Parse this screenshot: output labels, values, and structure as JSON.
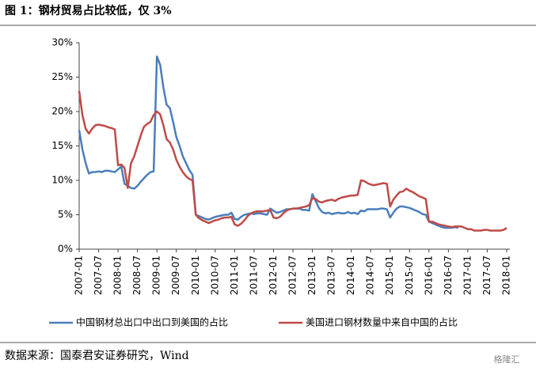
{
  "chart_data": {
    "type": "line",
    "title": "图 1：钢材贸易占比较低，仅 3%",
    "source": "数据来源：国泰君安证券研究，Wind",
    "watermark": "格隆汇",
    "categories": [
      "2007-01",
      null,
      null,
      null,
      null,
      null,
      "2007-07",
      null,
      null,
      null,
      null,
      null,
      "2008-01",
      null,
      null,
      null,
      null,
      null,
      "2008-07",
      null,
      null,
      null,
      null,
      null,
      "2009-01",
      null,
      null,
      null,
      null,
      null,
      "2009-07",
      null,
      null,
      null,
      null,
      null,
      "2010-01",
      null,
      null,
      null,
      null,
      null,
      "2010-07",
      null,
      null,
      null,
      null,
      null,
      "2011-01",
      null,
      null,
      null,
      null,
      null,
      "2011-07",
      null,
      null,
      null,
      null,
      null,
      "2012-01",
      null,
      null,
      null,
      null,
      null,
      "2012-07",
      null,
      null,
      null,
      null,
      null,
      "2013-01",
      null,
      null,
      null,
      null,
      null,
      "2013-07",
      null,
      null,
      null,
      null,
      null,
      "2014-01",
      null,
      null,
      null,
      null,
      null,
      "2014-07",
      null,
      null,
      null,
      null,
      null,
      "2015-01",
      null,
      null,
      null,
      null,
      null,
      "2015-07",
      null,
      null,
      null,
      null,
      null,
      "2016-01",
      null,
      null,
      null,
      null,
      null,
      "2016-07",
      null,
      null,
      null,
      null,
      null,
      "2017-01",
      null,
      null,
      null,
      null,
      null,
      "2017-07",
      null,
      null,
      null,
      null,
      null,
      "2018-01"
    ],
    "series": [
      {
        "name": "中国钢材总出口中出口到美国的占比",
        "color": "#4a7ebb",
        "values": [
          17.3,
          14.5,
          12.5,
          11,
          11.2,
          11.2,
          11.3,
          11.2,
          11.4,
          11.4,
          11.3,
          11.2,
          11.6,
          12,
          9.5,
          9.2,
          8.9,
          8.8,
          9.2,
          9.8,
          10.3,
          10.8,
          11.2,
          11.3,
          28,
          26.8,
          23.5,
          21,
          20.5,
          18.5,
          16.3,
          15,
          13.5,
          12.5,
          11.5,
          10.8,
          5,
          4.8,
          4.6,
          4.4,
          4.3,
          4.5,
          4.7,
          4.8,
          4.9,
          5,
          5,
          5.3,
          4.4,
          4.3,
          4.7,
          5,
          5.1,
          5.2,
          5.1,
          5.2,
          5.2,
          5.1,
          5,
          5.9,
          5.6,
          5.3,
          5.4,
          5.6,
          5.8,
          5.8,
          5.9,
          5.9,
          5.9,
          5.7,
          5.7,
          5.6,
          8,
          7,
          6,
          5.4,
          5.2,
          5.3,
          5.1,
          5.2,
          5.3,
          5.2,
          5.2,
          5.4,
          5.2,
          5.3,
          5.1,
          5.6,
          5.5,
          5.8,
          5.8,
          5.8,
          5.8,
          5.9,
          5.9,
          5.8,
          4.6,
          5.3,
          5.9,
          6.2,
          6.2,
          6.1,
          6,
          5.8,
          5.6,
          5.4,
          5.1,
          5,
          4,
          3.8,
          3.6,
          3.4,
          3.2,
          3.1,
          3.1,
          3.1,
          3.2,
          3.1,
          null,
          null,
          null,
          null,
          null,
          null,
          null,
          null,
          null,
          null,
          null,
          null,
          null,
          null,
          null
        ]
      },
      {
        "name": "美国进口钢材数量中来自中国的占比",
        "color": "#be4b48",
        "values": [
          23,
          19.5,
          17.5,
          16.8,
          17.5,
          18,
          18.1,
          18,
          17.9,
          17.7,
          17.6,
          17.4,
          12.2,
          12.3,
          11.8,
          8.9,
          12.5,
          13.5,
          15,
          16.5,
          17.8,
          18.2,
          18.5,
          19.5,
          20,
          19.6,
          18,
          16,
          15.5,
          14.5,
          13,
          12,
          11.2,
          10.6,
          10.2,
          10,
          5,
          4.5,
          4.2,
          4,
          3.8,
          4,
          4.2,
          4.3,
          4.5,
          4.6,
          4.6,
          4.7,
          3.6,
          3.4,
          3.7,
          4.2,
          4.8,
          5.2,
          5.4,
          5.5,
          5.5,
          5.5,
          5.6,
          5.7,
          4.6,
          4.5,
          4.7,
          5.2,
          5.6,
          5.8,
          5.9,
          5.9,
          6,
          6.1,
          6.2,
          6.4,
          7.4,
          7.3,
          6.9,
          6.8,
          7,
          7.1,
          7.2,
          7,
          7.3,
          7.5,
          7.6,
          7.7,
          7.8,
          7.8,
          7.9,
          10,
          9.9,
          9.6,
          9.4,
          9.3,
          9.4,
          9.5,
          9.6,
          9.5,
          6.2,
          7.2,
          7.8,
          8.3,
          8.4,
          8.8,
          8.5,
          8.3,
          8,
          7.7,
          7.5,
          7.3,
          4,
          4,
          3.8,
          3.6,
          3.5,
          3.4,
          3.3,
          3.2,
          3.3,
          3.3,
          3.3,
          3.1,
          2.9,
          2.9,
          2.7,
          2.7,
          2.7,
          2.8,
          2.8,
          2.7,
          2.7,
          2.7,
          2.7,
          2.8,
          3.1
        ]
      }
    ],
    "ylim": [
      0,
      30
    ],
    "yticks": [
      {
        "value": 0,
        "label": "0%"
      },
      {
        "value": 5,
        "label": "5%"
      },
      {
        "value": 10,
        "label": "10%"
      },
      {
        "value": 15,
        "label": "15%"
      },
      {
        "value": 20,
        "label": "20%"
      },
      {
        "value": 25,
        "label": "25%"
      },
      {
        "value": 30,
        "label": "30%"
      }
    ],
    "grid": false,
    "legend": "bottom"
  }
}
